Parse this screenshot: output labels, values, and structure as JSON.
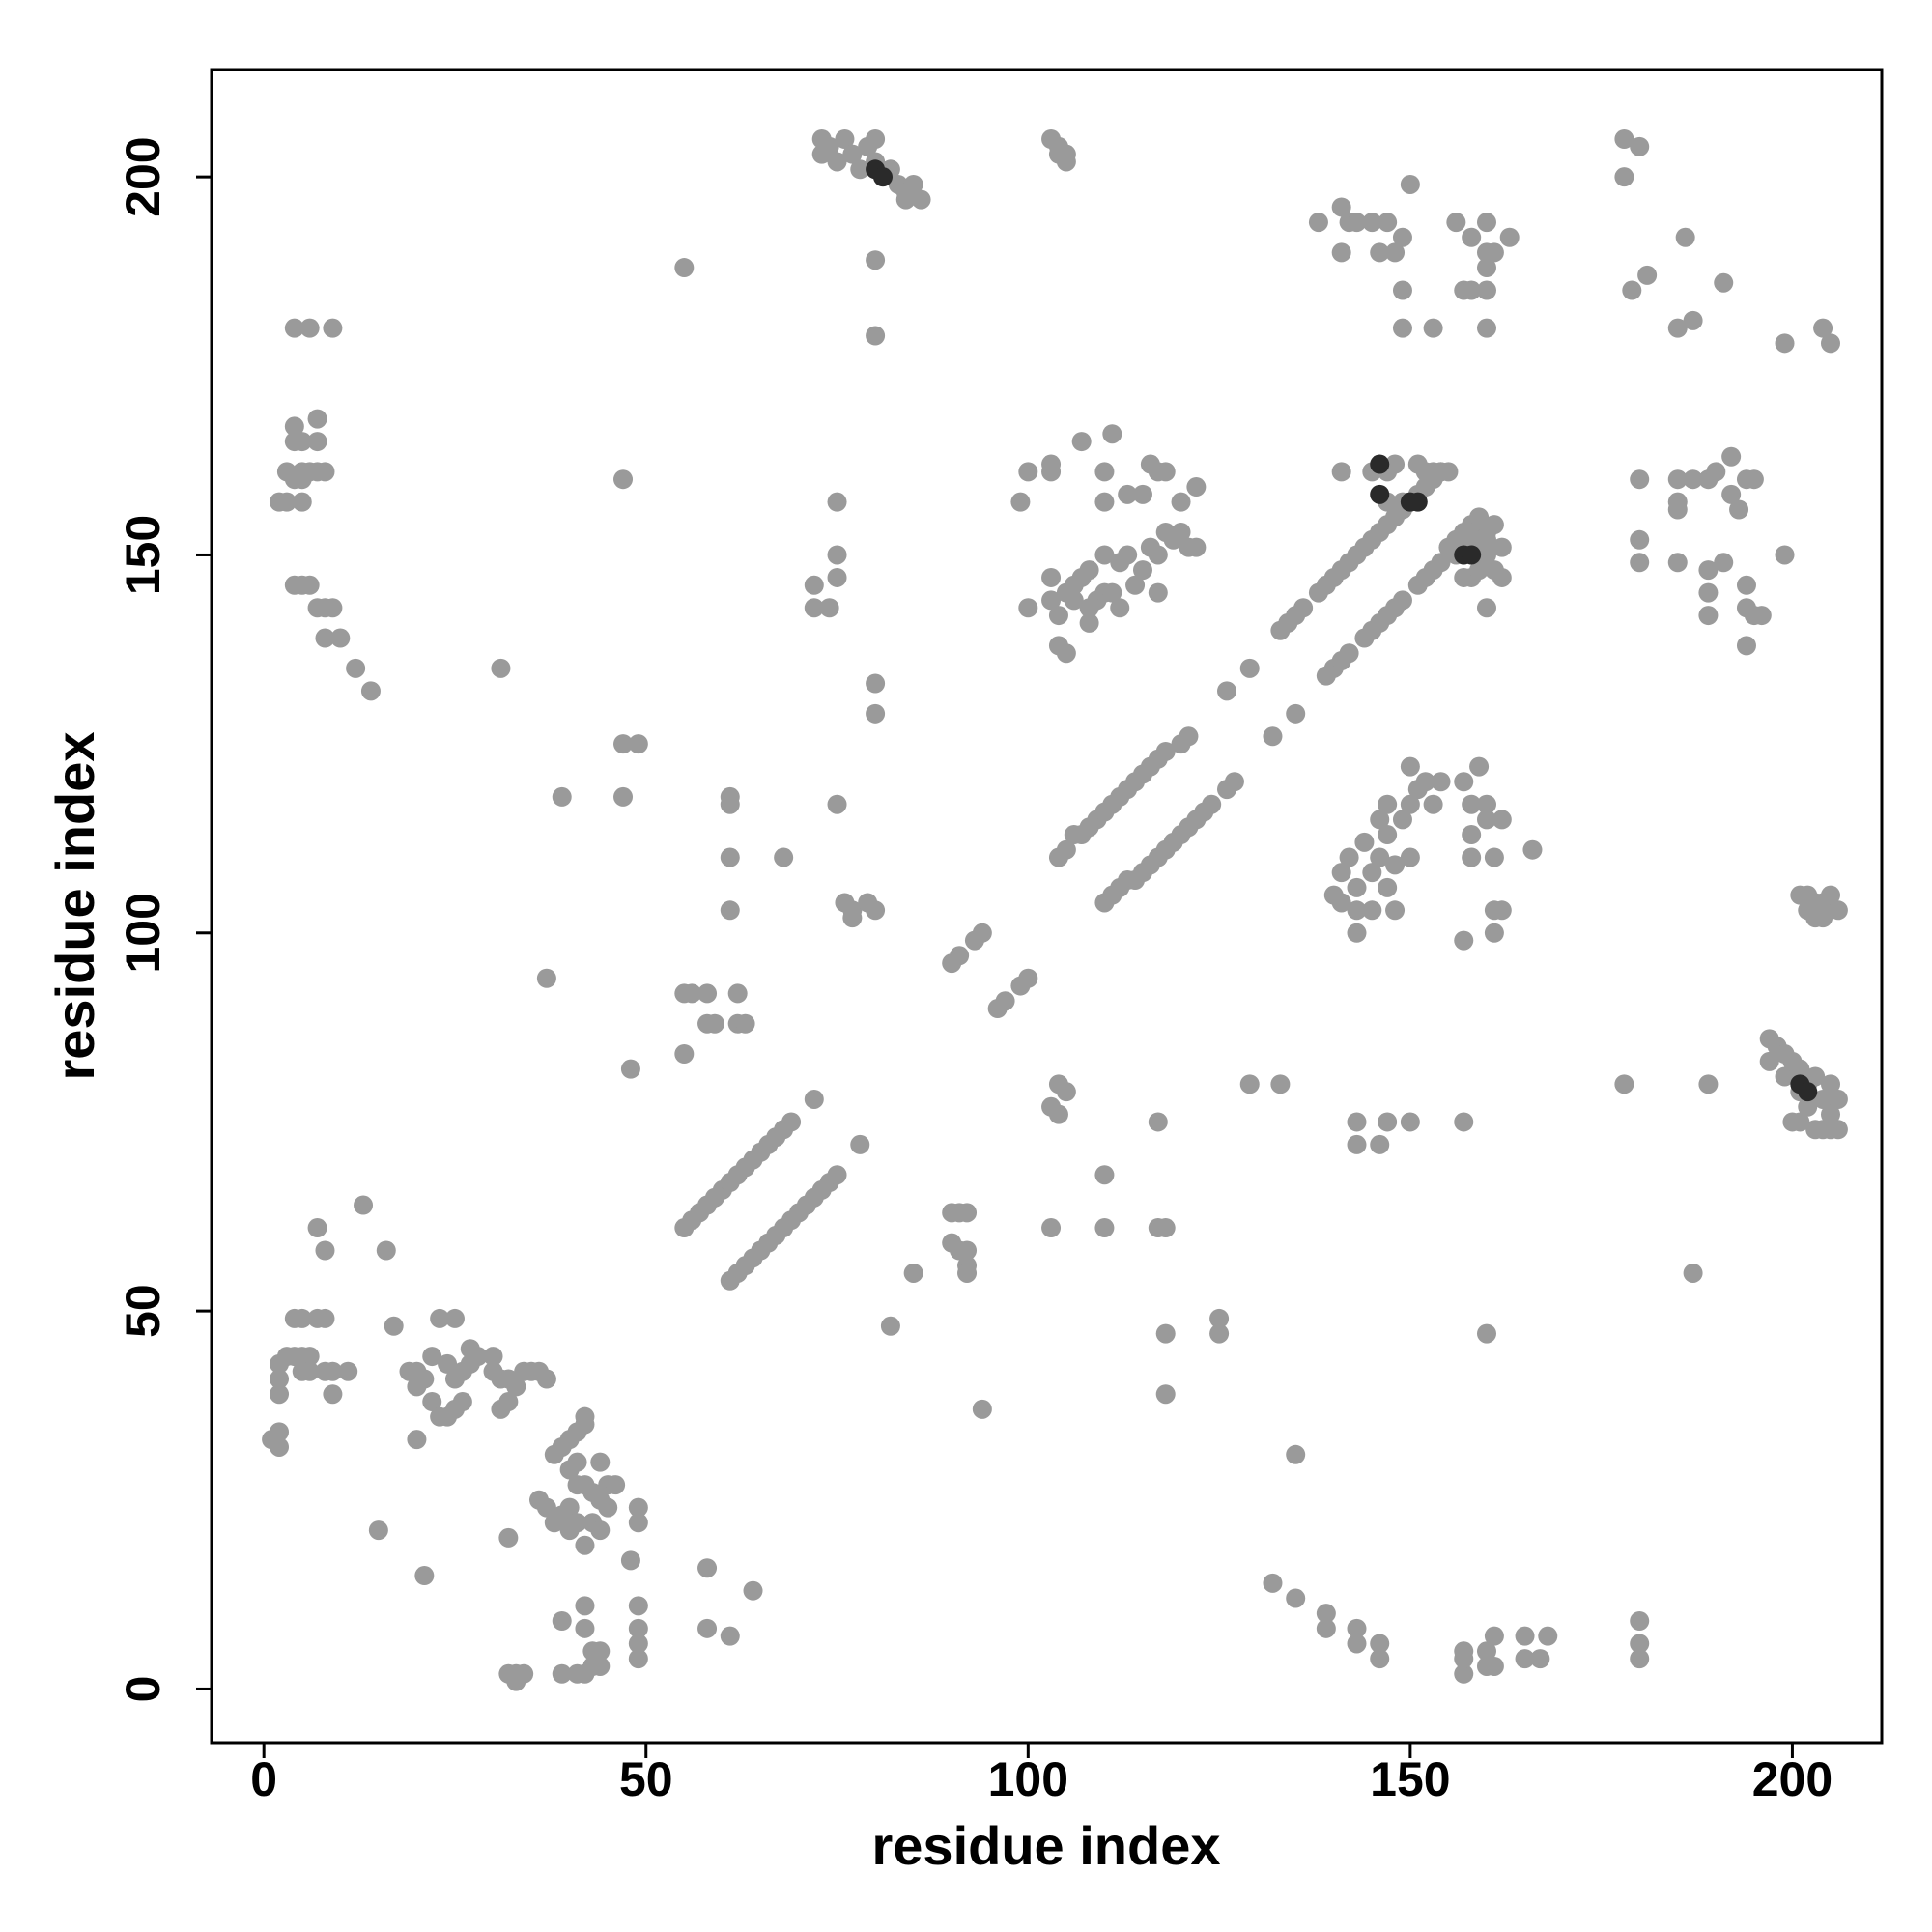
{
  "chart_data": {
    "type": "scatter",
    "x_label": "residue index",
    "y_label": "residue index",
    "xlim": [
      -6.85,
      211.7
    ],
    "ylim": [
      -7.1,
      214.2
    ],
    "xticks": [
      0,
      50,
      100,
      150,
      200
    ],
    "yticks": [
      0,
      50,
      100,
      150,
      200
    ],
    "series": [
      {
        "color": "#9a9a9a",
        "x": [
          1,
          2,
          2,
          2,
          2,
          2,
          3,
          4,
          5,
          6,
          4,
          5,
          7,
          8,
          5,
          6,
          8,
          9,
          11,
          9,
          7,
          8,
          13,
          16,
          17,
          15,
          21,
          20,
          19,
          20,
          20,
          21,
          22,
          22,
          23,
          24,
          25,
          25,
          23,
          24,
          25,
          26,
          26,
          27,
          27,
          28,
          30,
          30,
          31,
          32,
          31,
          32,
          33,
          34,
          35,
          36,
          37,
          33,
          33,
          32,
          34,
          32,
          38,
          39,
          40,
          41,
          42,
          42,
          40,
          41,
          44,
          36,
          37,
          38,
          39,
          40,
          41,
          42,
          43,
          44,
          45,
          41,
          42,
          43,
          44,
          45,
          46,
          40,
          39,
          42,
          42,
          43,
          44,
          44,
          39,
          41,
          42,
          43,
          49,
          49,
          49,
          49,
          48,
          49,
          49,
          58,
          58,
          61,
          64,
          2,
          3,
          4,
          3,
          5,
          6,
          7,
          8,
          4,
          4,
          5,
          7,
          7,
          5,
          5,
          4,
          5,
          6,
          7,
          8,
          9,
          8,
          10,
          12,
          14,
          4,
          6,
          9,
          31,
          37,
          39,
          47,
          47,
          49,
          47,
          48,
          55,
          55,
          55,
          56,
          58,
          58,
          59,
          62,
          63,
          62,
          61,
          61,
          61,
          61,
          68,
          75,
          75,
          75,
          74,
          72,
          72,
          75,
          76,
          77,
          77,
          79,
          80,
          80,
          80,
          80,
          80,
          73,
          73,
          74,
          75,
          76,
          77,
          78,
          79,
          80,
          81,
          82,
          83,
          84,
          85,
          86,
          84,
          80,
          104,
          103,
          104,
          105,
          105,
          92,
          90,
          91,
          90,
          91,
          92,
          92,
          92,
          85,
          82,
          94,
          103,
          110,
          117,
          118,
          118,
          118,
          125,
          125,
          110,
          117,
          103,
          104,
          104,
          105,
          129,
          133,
          135,
          132,
          135,
          139,
          139,
          143,
          143,
          146,
          146,
          157,
          157,
          157,
          160,
          160,
          161,
          161,
          165,
          165,
          167,
          168,
          180,
          180,
          180,
          187,
          160,
          178,
          189,
          143,
          143,
          146,
          147,
          150,
          157,
          100,
          103,
          103,
          99,
          100,
          103,
          103,
          104,
          104,
          105,
          106,
          106,
          107,
          108,
          108,
          109,
          110,
          110,
          110,
          110,
          111,
          112,
          112,
          113,
          113,
          114,
          115,
          115,
          116,
          116,
          117,
          117,
          117,
          118,
          118,
          119,
          120,
          120,
          121,
          122,
          122,
          111,
          107,
          105,
          108,
          140,
          141,
          141,
          142,
          143,
          143,
          143,
          144,
          145,
          145,
          146,
          146,
          147,
          147,
          147,
          148,
          148,
          149,
          150,
          150,
          150,
          151,
          152,
          153,
          154,
          157,
          158,
          158,
          158,
          159,
          160,
          160,
          161,
          161,
          161,
          162,
          162,
          166,
          157,
          141,
          145,
          147,
          147,
          148,
          149,
          151,
          152,
          153,
          154,
          155,
          156,
          157,
          158,
          157,
          159,
          159,
          160,
          160,
          161,
          161,
          162,
          162,
          160,
          160,
          138,
          141,
          141,
          142,
          143,
          145,
          146,
          147,
          148,
          149,
          149,
          149,
          150,
          153,
          156,
          157,
          158,
          158,
          160,
          160,
          160,
          160,
          160,
          161,
          163,
          178,
          178,
          179,
          180,
          181,
          185,
          186,
          187,
          191,
          199,
          204,
          205,
          180,
          185,
          185,
          185,
          187,
          189,
          190,
          192,
          192,
          193,
          194,
          195,
          194,
          194,
          195,
          194,
          196,
          189,
          189,
          189,
          191,
          185,
          180,
          180,
          199,
          201,
          202,
          203,
          204,
          205,
          206,
          203,
          204,
          202,
          197,
          197,
          198,
          199,
          199,
          200,
          201,
          201,
          202,
          202,
          203,
          204,
          205,
          205,
          206,
          203,
          204,
          205,
          206,
          201,
          200,
          55,
          56,
          57,
          58,
          59,
          60,
          61,
          62,
          63,
          64,
          65,
          66,
          67,
          68,
          69,
          72,
          61,
          62,
          63,
          64,
          65,
          66,
          67,
          68,
          69,
          70,
          71,
          72,
          73,
          74,
          75,
          78,
          90,
          91,
          93,
          94,
          96,
          97,
          99,
          100,
          104,
          105,
          106,
          107,
          108,
          109,
          110,
          111,
          112,
          113,
          114,
          115,
          116,
          117,
          118,
          120,
          121,
          126,
          129,
          133,
          134,
          135,
          136,
          138,
          139,
          140,
          141,
          142,
          143,
          144,
          145,
          146,
          147,
          148,
          149,
          150,
          151,
          152,
          153,
          154,
          110,
          111,
          112,
          113,
          114,
          115,
          116,
          117,
          118,
          119,
          120,
          121,
          122,
          123,
          124,
          126,
          127,
          132,
          135,
          139,
          140,
          141,
          142,
          144,
          145,
          146,
          147,
          148,
          149,
          151,
          152,
          153,
          154,
          155,
          156,
          157,
          158,
          159
        ],
        "values": [
          33,
          32,
          34,
          39,
          41,
          43,
          44,
          44,
          44,
          44,
          49,
          49,
          49,
          49,
          42,
          42,
          42,
          42,
          42,
          39,
          61,
          58,
          64,
          58,
          48,
          21,
          15,
          33,
          42,
          42,
          40,
          41,
          44,
          38,
          49,
          43,
          41,
          49,
          36,
          36,
          37,
          38,
          42,
          45,
          43,
          44,
          44,
          42,
          37,
          38,
          41,
          41,
          40,
          42,
          42,
          42,
          41,
          2,
          1,
          2,
          2,
          20,
          31,
          32,
          33,
          34,
          35,
          36,
          29,
          30,
          30,
          25,
          24,
          22,
          23,
          24,
          22,
          19,
          26,
          25,
          24,
          27,
          27,
          22,
          21,
          27,
          27,
          21,
          9,
          11,
          8,
          5,
          3,
          5,
          2,
          2,
          2,
          3,
          4,
          6,
          8,
          11,
          17,
          22,
          24,
          16,
          8,
          7,
          13,
          157,
          157,
          160,
          161,
          161,
          161,
          161,
          161,
          165,
          167,
          165,
          165,
          168,
          157,
          160,
          146,
          146,
          146,
          143,
          143,
          143,
          139,
          139,
          135,
          132,
          180,
          180,
          180,
          135,
          94,
          118,
          160,
          125,
          125,
          118,
          82,
          188,
          84,
          92,
          92,
          92,
          88,
          88,
          88,
          88,
          92,
          118,
          117,
          110,
          103,
          110,
          157,
          150,
          147,
          143,
          146,
          143,
          117,
          104,
          103,
          102,
          104,
          103,
          133,
          129,
          189,
          179,
          205,
          203,
          204,
          202,
          205,
          203,
          201,
          204,
          202,
          200,
          201,
          199,
          198,
          199,
          197,
          197,
          205,
          203,
          205,
          204,
          203,
          202,
          63,
          63,
          63,
          59,
          58,
          58,
          56,
          55,
          55,
          48,
          37,
          61,
          61,
          61,
          61,
          47,
          39,
          49,
          47,
          68,
          75,
          77,
          80,
          76,
          79,
          80,
          80,
          31,
          14,
          12,
          10,
          8,
          8,
          6,
          6,
          4,
          2,
          4,
          5,
          3,
          5,
          7,
          3,
          4,
          7,
          4,
          7,
          4,
          6,
          9,
          55,
          47,
          80,
          80,
          75,
          72,
          72,
          75,
          75,
          75,
          161,
          161,
          162,
          157,
          143,
          147,
          144,
          142,
          138,
          137,
          144,
          146,
          147,
          141,
          148,
          144,
          145,
          150,
          157,
          161,
          145,
          149,
          143,
          150,
          158,
          146,
          148,
          158,
          151,
          162,
          150,
          161,
          145,
          153,
          161,
          152,
          153,
          157,
          151,
          151,
          159,
          166,
          165,
          145,
          143,
          105,
          104,
          108,
          110,
          103,
          100,
          106,
          112,
          108,
          103,
          115,
          110,
          106,
          113,
          117,
          109,
          103,
          115,
          117,
          110,
          122,
          119,
          120,
          117,
          120,
          120,
          117,
          113,
          110,
          122,
          117,
          115,
          110,
          100,
          103,
          103,
          115,
          111,
          99,
          161,
          161,
          157,
          161,
          162,
          157,
          162,
          161,
          161,
          161,
          161,
          150,
          151,
          147,
          147,
          148,
          152,
          152,
          153,
          154,
          148,
          151,
          147,
          143,
          150,
          194,
          196,
          190,
          194,
          194,
          194,
          190,
          194,
          190,
          192,
          185,
          180,
          199,
          180,
          194,
          185,
          192,
          185,
          180,
          185,
          188,
          190,
          194,
          190,
          192,
          205,
          200,
          185,
          204,
          187,
          180,
          192,
          181,
          186,
          178,
          180,
          178,
          160,
          160,
          157,
          156,
          160,
          160,
          161,
          163,
          158,
          156,
          160,
          160,
          146,
          143,
          142,
          138,
          142,
          148,
          145,
          142,
          149,
          149,
          152,
          149,
          150,
          105,
          105,
          104,
          104,
          105,
          103,
          102,
          102,
          103,
          86,
          83,
          85,
          84,
          81,
          83,
          82,
          79,
          80,
          77,
          81,
          78,
          80,
          76,
          78,
          74,
          74,
          74,
          74,
          75,
          75,
          61,
          62,
          63,
          64,
          65,
          66,
          67,
          68,
          69,
          70,
          71,
          72,
          73,
          74,
          75,
          78,
          54,
          55,
          56,
          57,
          58,
          59,
          60,
          61,
          62,
          63,
          64,
          65,
          66,
          67,
          68,
          72,
          96,
          97,
          99,
          100,
          90,
          91,
          93,
          94,
          110,
          111,
          113,
          113,
          114,
          115,
          116,
          117,
          118,
          119,
          120,
          121,
          122,
          123,
          124,
          125,
          126,
          132,
          135,
          140,
          141,
          142,
          143,
          145,
          146,
          147,
          148,
          149,
          150,
          151,
          152,
          153,
          154,
          155,
          156,
          157,
          158,
          159,
          160,
          161,
          104,
          105,
          106,
          107,
          107,
          108,
          109,
          110,
          111,
          112,
          113,
          114,
          115,
          116,
          117,
          119,
          120,
          126,
          129,
          134,
          135,
          136,
          137,
          139,
          140,
          141,
          142,
          143,
          144,
          146,
          147,
          148,
          149,
          151,
          152,
          153,
          154,
          155
        ]
      },
      {
        "color": "#2a2a2a",
        "x": [
          146,
          150,
          151,
          157,
          158,
          146,
          80,
          81,
          201,
          202
        ],
        "values": [
          162,
          157,
          157,
          150,
          150,
          158,
          201,
          200,
          80,
          79
        ]
      }
    ]
  }
}
